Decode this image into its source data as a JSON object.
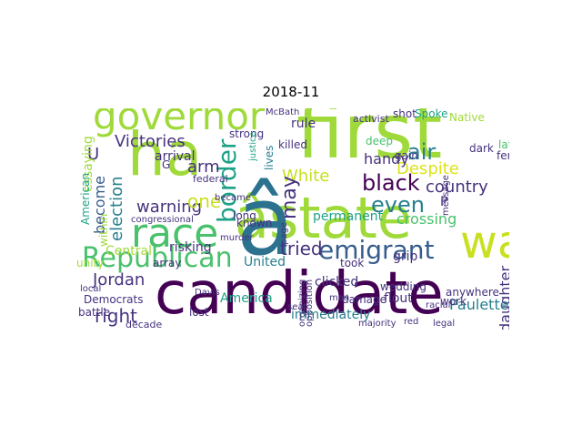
{
  "title": "2018-11",
  "palette": {
    "dark_purple": "#440154",
    "indigo": "#46327e",
    "blue": "#365c8d",
    "steel": "#2c728e",
    "teal": "#277f8e",
    "cyan_teal": "#1fa187",
    "green": "#4ac16d",
    "light_green": "#9fda3a",
    "yellow_green": "#c8e020",
    "yellow": "#dde318"
  },
  "words": [
    {
      "id": "candidate",
      "text": "candidate",
      "color": "#440154"
    },
    {
      "id": "state",
      "text": "âstate",
      "color": "#9fda3a"
    },
    {
      "id": "a-hat",
      "text": "â",
      "color": "#2c728e"
    },
    {
      "id": "first",
      "text": "first",
      "color": "#9fda3a"
    },
    {
      "id": "ha",
      "text": "ha",
      "color": "#9fda3a"
    },
    {
      "id": "governor",
      "text": "governor",
      "color": "#9fda3a"
    },
    {
      "id": "race",
      "text": "race",
      "color": "#4ac16d"
    },
    {
      "id": "republican",
      "text": "Republican",
      "color": "#4ac16d"
    },
    {
      "id": "wa",
      "text": "wa",
      "color": "#c8e020"
    },
    {
      "id": "border",
      "text": "border",
      "color": "#1fa187"
    },
    {
      "id": "emigrant",
      "text": "emigrant",
      "color": "#365c8d"
    },
    {
      "id": "victories",
      "text": "Victories",
      "color": "#46327e"
    },
    {
      "id": "black",
      "text": "black",
      "color": "#440154"
    },
    {
      "id": "tried",
      "text": "tried",
      "color": "#46327e"
    },
    {
      "id": "even",
      "text": "even",
      "color": "#277f8e"
    },
    {
      "id": "warning",
      "text": "warning",
      "color": "#46327e"
    },
    {
      "id": "jordan",
      "text": "Jordan",
      "color": "#46327e"
    },
    {
      "id": "right",
      "text": "right",
      "color": "#46327e"
    },
    {
      "id": "arm",
      "text": "arm",
      "color": "#46327e"
    },
    {
      "id": "one",
      "text": "one",
      "color": "#c8e020"
    },
    {
      "id": "white",
      "text": "White",
      "color": "#c8e020"
    },
    {
      "id": "country",
      "text": "country",
      "color": "#46327e"
    },
    {
      "id": "air",
      "text": "air",
      "color": "#277f8e"
    },
    {
      "id": "may",
      "text": "may",
      "color": "#46327e"
    },
    {
      "id": "election",
      "text": "election",
      "color": "#277f8e"
    },
    {
      "id": "become",
      "text": "become",
      "color": "#365c8d"
    },
    {
      "id": "u",
      "text": "U",
      "color": "#46327e"
    },
    {
      "id": "crossing",
      "text": "crossing",
      "color": "#4ac16d"
    },
    {
      "id": "permanent",
      "text": "permanent",
      "color": "#1fa187"
    },
    {
      "id": "united",
      "text": "United",
      "color": "#277f8e"
    },
    {
      "id": "daughter",
      "text": "daughter",
      "color": "#46327e"
    },
    {
      "id": "paulette",
      "text": "Paulette",
      "color": "#277f8e"
    },
    {
      "id": "america",
      "text": "America",
      "color": "#1fa187"
    },
    {
      "id": "immediately",
      "text": "immediately",
      "color": "#277f8e"
    },
    {
      "id": "arrival",
      "text": "arrival",
      "color": "#46327e"
    },
    {
      "id": "despite",
      "text": "Despite",
      "color": "#dde318"
    },
    {
      "id": "handy",
      "text": "handy",
      "color": "#46327e"
    },
    {
      "id": "essaying",
      "text": "essaying",
      "color": "#9fda3a"
    },
    {
      "id": "american",
      "text": "American",
      "color": "#1fa187"
    },
    {
      "id": "rule",
      "text": "rule",
      "color": "#46327e"
    },
    {
      "id": "shot",
      "text": "shot",
      "color": "#46327e"
    },
    {
      "id": "spoke",
      "text": "Spoke",
      "color": "#1fa187"
    },
    {
      "id": "native",
      "text": "Native",
      "color": "#9fda3a"
    },
    {
      "id": "activist",
      "text": "activist",
      "color": "#46327e"
    },
    {
      "id": "deep",
      "text": "deep",
      "color": "#4ac16d"
    },
    {
      "id": "killed",
      "text": "killed",
      "color": "#46327e"
    },
    {
      "id": "lives",
      "text": "lives",
      "color": "#277f8e"
    },
    {
      "id": "strong",
      "text": "strong",
      "color": "#46327e"
    },
    {
      "id": "mcbath",
      "text": "McBath",
      "color": "#46327e"
    },
    {
      "id": "justice",
      "text": "justice",
      "color": "#1fa187"
    },
    {
      "id": "federal",
      "text": "federal",
      "color": "#46327e"
    },
    {
      "id": "long",
      "text": "long",
      "color": "#46327e"
    },
    {
      "id": "known",
      "text": "known",
      "color": "#46327e"
    },
    {
      "id": "within",
      "text": "within",
      "color": "#9fda3a"
    },
    {
      "id": "congressional",
      "text": "congressional",
      "color": "#46327e"
    },
    {
      "id": "central",
      "text": "Central",
      "color": "#9fda3a"
    },
    {
      "id": "risking",
      "text": "risking",
      "color": "#46327e"
    },
    {
      "id": "array",
      "text": "array",
      "color": "#46327e"
    },
    {
      "id": "unity",
      "text": "unity",
      "color": "#9fda3a"
    },
    {
      "id": "democrats",
      "text": "Democrats",
      "color": "#46327e"
    },
    {
      "id": "battle",
      "text": "battle",
      "color": "#46327e"
    },
    {
      "id": "decade",
      "text": "decade",
      "color": "#46327e"
    },
    {
      "id": "lost",
      "text": "lost",
      "color": "#46327e"
    },
    {
      "id": "davis",
      "text": "Davis",
      "color": "#46327e"
    },
    {
      "id": "local",
      "text": "local",
      "color": "#46327e"
    },
    {
      "id": "clicked",
      "text": "clicked",
      "color": "#46327e"
    },
    {
      "id": "took",
      "text": "took",
      "color": "#46327e"
    },
    {
      "id": "damage",
      "text": "damage",
      "color": "#46327e"
    },
    {
      "id": "wedding",
      "text": "wedding",
      "color": "#46327e"
    },
    {
      "id": "flout",
      "text": "flout",
      "color": "#46327e"
    },
    {
      "id": "anywhere",
      "text": "anywhere",
      "color": "#46327e"
    },
    {
      "id": "allowing",
      "text": "allowing",
      "color": "#46327e"
    },
    {
      "id": "work",
      "text": "work",
      "color": "#46327e"
    },
    {
      "id": "majority",
      "text": "majority",
      "color": "#46327e"
    },
    {
      "id": "red",
      "text": "red",
      "color": "#46327e"
    },
    {
      "id": "legal",
      "text": "legal",
      "color": "#46327e"
    },
    {
      "id": "grip",
      "text": "grip",
      "color": "#46327e"
    },
    {
      "id": "gain",
      "text": "gain",
      "color": "#46327e"
    },
    {
      "id": "dark",
      "text": "dark",
      "color": "#46327e"
    },
    {
      "id": "later",
      "text": "later",
      "color": "#4ac16d"
    },
    {
      "id": "female",
      "text": "female",
      "color": "#46327e"
    },
    {
      "id": "message",
      "text": "message",
      "color": "#46327e"
    },
    {
      "id": "racial",
      "text": "racial",
      "color": "#46327e"
    },
    {
      "id": "p",
      "text": "P",
      "color": "#46327e"
    },
    {
      "id": "page",
      "text": "page",
      "color": "#46327e"
    },
    {
      "id": "man",
      "text": "man",
      "color": "#46327e"
    },
    {
      "id": "became",
      "text": "became",
      "color": "#46327e"
    },
    {
      "id": "murder",
      "text": "murder",
      "color": "#46327e"
    },
    {
      "id": "seat",
      "text": "seat",
      "color": "#46327e"
    },
    {
      "id": "g",
      "text": "G",
      "color": "#46327e"
    },
    {
      "id": "organizing",
      "text": "organizing",
      "color": "#46327e"
    },
    {
      "id": "opposition",
      "text": "opposition",
      "color": "#46327e"
    }
  ]
}
